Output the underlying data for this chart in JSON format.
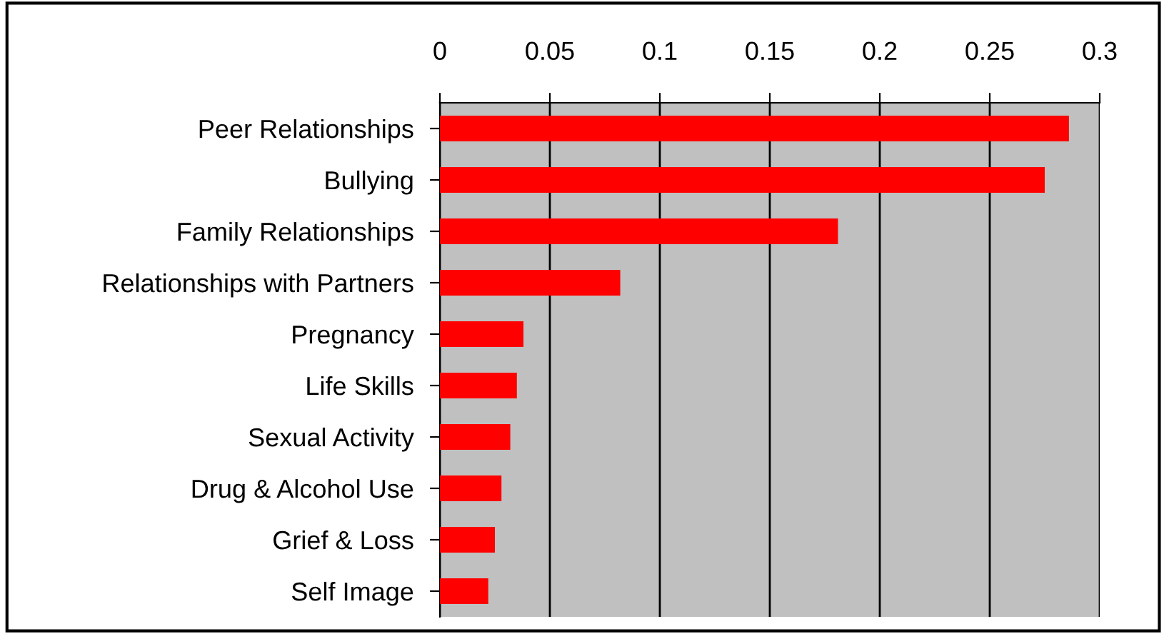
{
  "chart_data": {
    "type": "bar",
    "orientation": "horizontal",
    "categories": [
      "Peer Relationships",
      "Bullying",
      "Family Relationships",
      "Relationships with Partners",
      "Pregnancy",
      "Life Skills",
      "Sexual Activity",
      "Drug & Alcohol Use",
      "Grief & Loss",
      "Self Image"
    ],
    "values": [
      0.286,
      0.275,
      0.181,
      0.082,
      0.038,
      0.035,
      0.032,
      0.028,
      0.025,
      0.022
    ],
    "color": "#ff0000",
    "xlim": [
      0,
      0.3
    ],
    "xticks": [
      0,
      0.05,
      0.1,
      0.15,
      0.2,
      0.25,
      0.3
    ],
    "grid": "x"
  }
}
